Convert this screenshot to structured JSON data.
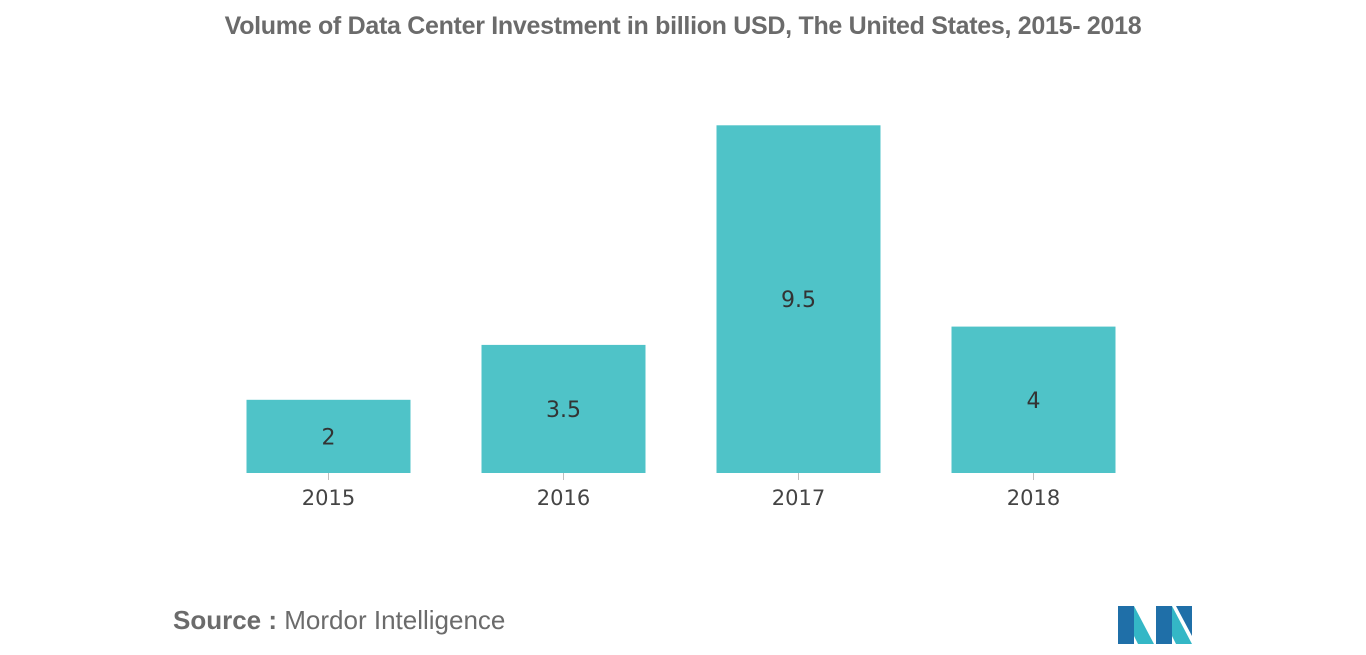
{
  "chart_data": {
    "type": "bar",
    "title": "Volume of Data Center Investment in billion USD, The United States, 2015- 2018",
    "categories": [
      "2015",
      "2016",
      "2017",
      "2018"
    ],
    "values": [
      2,
      3.5,
      9.5,
      4
    ],
    "data_labels": [
      "2",
      "3.5",
      "9.5",
      "4"
    ],
    "xlabel": "",
    "ylabel": "",
    "ylim": [
      0,
      10
    ],
    "grid": false,
    "legend": "none",
    "bar_color": "#4fc3c8"
  },
  "footer": {
    "source_label": "Source :",
    "source_name": "Mordor Intelligence"
  },
  "logo": {
    "icon": "mordor-intelligence-logo-icon",
    "colors": [
      "#1f6fa8",
      "#34b7c6"
    ]
  }
}
